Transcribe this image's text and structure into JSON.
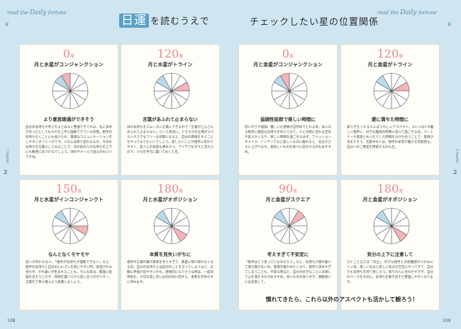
{
  "header": {
    "running_left_1": "read the",
    "running_left_2": "Daily",
    "running_left_3": "fortune",
    "running_right_1": "read the",
    "running_right_2": "Daily",
    "running_right_3": "fortune",
    "title_left_kanji": "日運",
    "title_left_rest": "を読むうえで",
    "title_right": "チェックしたい星の位置関係"
  },
  "chapter": {
    "label": "Chapter",
    "number": "2"
  },
  "cards": [
    {
      "deg": "0",
      "unit": "度",
      "aspect": "月と水星がコンジャンクション",
      "keyword": "より意思疎通ができそう",
      "body": "自分の気持ちや考えをよどみなく整理できてれば、気に多弁があったとしてもそれを上手に理解できている状態。相手の気持ちをくことにも長けられ、最適なコミュニケーションをしやすいタイミングです。人の心は移り変わるもの。今日の気持ちを言葉にしてみることで、日の前の人の気持ちの上下にも敏感に気づけるでしょう。SNSやメールで送るのもいいですね。"
    },
    {
      "deg": "120",
      "unit": "度",
      "aspect": "月と水星がトライン",
      "keyword": "言葉があふれて止まらない",
      "body": "日の気持ちをスムーズに言葉にできるので「言葉がどんどんあふれてよまらない」という状況に。どちらかの立場がスペスハウスでもフリーな状態になると、自分の興味をすぐことをやってみてもいいでしょう。話したいことが相手に伝わりやすく、友人との会話も弾みそう。アイデアも次々と浮かぶので、メモを手元に置いておくと吉。"
    },
    {
      "deg": "0",
      "unit": "度",
      "aspect": "月と金星がコンジャンクション",
      "keyword": "協調性抜群で楽しい時間に",
      "body": "思いやりや協調、優しいた感情が自然体でとれる日。気になる相手に素直な気持ちを伝えてみて。人との間に流れる空気が柔らかくなり、楽しい時間を過ごせるはず。ファッションやメイク、インテリアなど美しいものに触れると、気分がさらに上がります。美味しいものを食べに出かけるのもおすすめ。"
    },
    {
      "deg": "120",
      "unit": "度",
      "aspect": "月と金星がトライン",
      "keyword": "愛に満ちた時間に",
      "body": "安らぎをくれる人にはうれしいアスペクト。GいっぱいR優しい相手に、好きな趣味の時間に浸って過ごせる日。パートナーや家族とゆったりした時間を分かち合うことで、愛情が深まりそう。恋愛中の人は、相手の本音が聞ける可能性も。自分へのご褒美を用意するのも吉。"
    },
    {
      "deg": "150",
      "unit": "度",
      "aspect": "月と水星がインコンジャンクト",
      "keyword": "なんとなくモヤモヤ",
      "body": "思いが伝わらない、「相手の気持ちが理解できない」など、相手の気持ちと自分の心にズレを感じやすい時。会話がかみ合わず、すれ違いが生まれることも。そんな日は、無理に結論を出そうとせず、時間を置いてから話し合うのがベター。言葉を丁寧に選ぶよう意識しましょう。"
    },
    {
      "deg": "180",
      "unit": "度",
      "aspect": "月と水星がオポジション",
      "keyword": "本質を見失いがちに",
      "body": "相手の言葉の裏の意味を考えすぎて、素直に受け取れなくなる日。自分の気持ちとは反対のことを言ってしまうなど、言動に矛盾が出やすいかも。感情的になりそうな時は、一度深呼吸を。大切な話し合いは別の日に回すと、本質を見失わずに済みます。"
    },
    {
      "deg": "90",
      "unit": "度",
      "aspect": "月と金星がスクエア",
      "keyword": "考えすぎて不安定に",
      "body": "「相手はどう思っているのだろう」など、気持ちが揺れ動いて落ち着かない日。愛情を確かめたくなり、相手に求めすぎてしまうことも。不安な時ほど、自分の好きなことに没頭して心を満たすのがおすすめ。甘いものの食べすぎ、衝動買いには注意して。"
    },
    {
      "deg": "180",
      "unit": "度",
      "aspect": "月と金星がオポジション",
      "keyword": "気分の上下に注意して",
      "body": "ひとこと言えば「対立」、好きな相手との距離感がつかみにくい日。楽しい気分と寂しい気分が交互にやってきて、自分でも気持ちを持て余しそう。周りの人に合わせすぎず、自分のペースを大切に。気持ちを書き出すと整理しやすくなります。"
    }
  ],
  "footer": "慣れてきたら、これら以外のアスペクトも活かして観ろう！",
  "page_numbers": {
    "left": "108",
    "right": "109"
  },
  "colors": {
    "accent": "#5aa1c7",
    "pink": "#e58b91",
    "blue_fill": "#b9dcec",
    "pink_fill": "#f2b5b8"
  }
}
